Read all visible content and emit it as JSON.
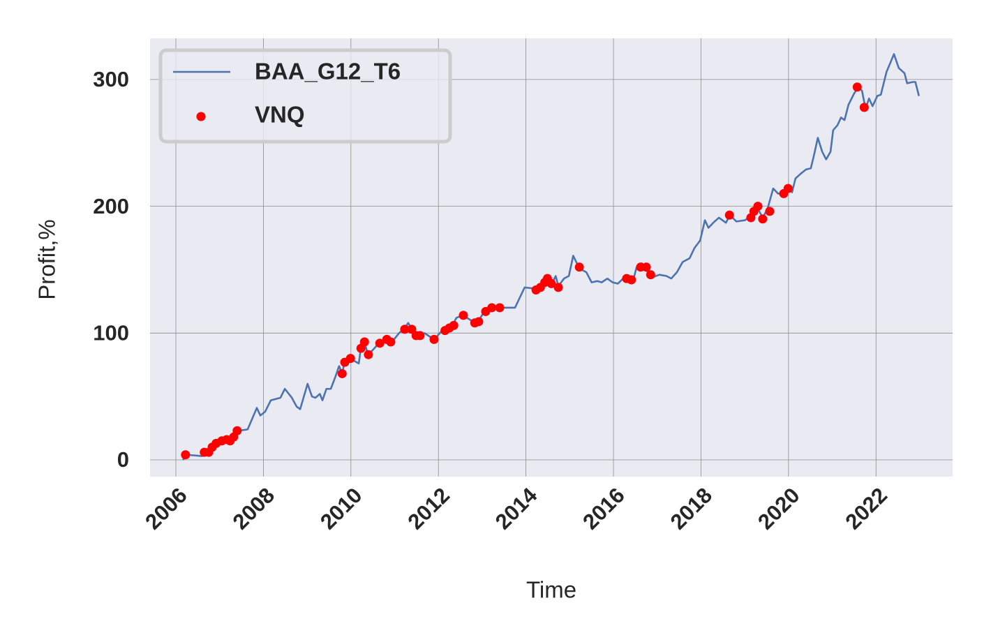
{
  "chart_data": {
    "type": "line",
    "xlabel": "Time",
    "ylabel": "Profit,%",
    "xlim": [
      2005.41,
      2023.75
    ],
    "ylim": [
      -13.2,
      332.4
    ],
    "xticks": [
      2006,
      2008,
      2010,
      2012,
      2014,
      2016,
      2018,
      2020,
      2022
    ],
    "yticks": [
      0,
      100,
      200,
      300
    ],
    "grid": true,
    "legend": "upper left",
    "series": [
      {
        "name": "BAA_G12_T6",
        "color": "#4c72b0",
        "mode": "line",
        "x": [
          2006.16,
          2006.26,
          2006.6,
          2006.77,
          2006.93,
          2007.08,
          2007.24,
          2007.44,
          2007.64,
          2007.85,
          2007.93,
          2008.04,
          2008.17,
          2008.39,
          2008.49,
          2008.65,
          2008.76,
          2008.84,
          2009.01,
          2009.11,
          2009.19,
          2009.29,
          2009.35,
          2009.44,
          2009.54,
          2009.64,
          2009.73,
          2009.8,
          2009.86,
          2009.96,
          2010.08,
          2010.18,
          2010.23,
          2010.31,
          2010.39,
          2010.51,
          2010.64,
          2010.83,
          2010.94,
          2011.1,
          2011.23,
          2011.31,
          2011.39,
          2011.52,
          2011.68,
          2011.9,
          2012.06,
          2012.19,
          2012.32,
          2012.41,
          2012.55,
          2012.7,
          2012.83,
          2012.92,
          2013.05,
          2013.14,
          2013.24,
          2013.33,
          2013.46,
          2013.75,
          2013.97,
          2014.23,
          2014.34,
          2014.45,
          2014.58,
          2014.68,
          2014.74,
          2014.87,
          2014.98,
          2015.08,
          2015.22,
          2015.38,
          2015.5,
          2015.63,
          2015.73,
          2015.86,
          2015.98,
          2016.1,
          2016.22,
          2016.33,
          2016.46,
          2016.53,
          2016.65,
          2016.76,
          2016.89,
          2017.05,
          2017.21,
          2017.32,
          2017.45,
          2017.58,
          2017.74,
          2017.85,
          2017.98,
          2018.09,
          2018.17,
          2018.28,
          2018.41,
          2018.57,
          2018.66,
          2018.81,
          2019.01,
          2019.14,
          2019.27,
          2019.41,
          2019.52,
          2019.65,
          2019.76,
          2019.89,
          2019.97,
          2020.08,
          2020.16,
          2020.29,
          2020.4,
          2020.51,
          2020.58,
          2020.67,
          2020.77,
          2020.86,
          2020.96,
          2021.02,
          2021.12,
          2021.2,
          2021.28,
          2021.37,
          2021.5,
          2021.6,
          2021.68,
          2021.76,
          2021.84,
          2021.92,
          2022.03,
          2022.11,
          2022.24,
          2022.41,
          2022.52,
          2022.65,
          2022.71,
          2022.84,
          2022.9,
          2022.98
        ],
        "values": [
          0,
          4,
          3,
          7,
          13,
          15,
          17,
          23,
          24,
          41,
          35,
          38,
          47,
          49,
          56,
          49,
          42,
          40,
          60,
          50,
          49,
          52,
          47,
          56,
          56,
          65,
          74,
          68,
          78,
          80,
          78,
          76,
          89,
          93,
          83,
          87,
          92,
          95,
          93,
          100,
          104,
          108,
          103,
          98,
          100,
          95,
          101,
          104,
          106,
          112,
          114,
          111,
          108,
          110,
          117,
          117,
          121,
          120,
          120,
          120,
          136,
          135,
          138,
          143,
          138,
          145,
          137,
          143,
          145,
          161,
          151,
          148,
          140,
          141,
          140,
          143,
          140,
          139,
          143,
          143,
          143,
          152,
          155,
          149,
          144,
          146,
          145,
          143,
          148,
          156,
          159,
          167,
          173,
          189,
          183,
          187,
          191,
          187,
          193,
          188,
          189,
          193,
          200,
          191,
          198,
          214,
          210,
          210,
          215,
          211,
          222,
          226,
          229,
          230,
          240,
          254,
          243,
          237,
          243,
          260,
          264,
          270,
          268,
          280,
          289,
          294,
          291,
          277,
          285,
          279,
          287,
          288,
          306,
          320,
          309,
          305,
          297,
          298,
          298,
          287
        ]
      },
      {
        "name": "VNQ",
        "color": "#ff0000",
        "mode": "markers",
        "x": [
          2006.22,
          2006.65,
          2006.75,
          2006.83,
          2006.92,
          2007.05,
          2007.16,
          2007.24,
          2007.32,
          2007.4,
          2009.8,
          2009.86,
          2009.99,
          2010.23,
          2010.31,
          2010.4,
          2010.66,
          2010.82,
          2010.91,
          2011.23,
          2011.39,
          2011.49,
          2011.58,
          2011.9,
          2012.15,
          2012.25,
          2012.35,
          2012.57,
          2012.83,
          2012.92,
          2013.08,
          2013.22,
          2013.4,
          2014.23,
          2014.33,
          2014.43,
          2014.49,
          2014.58,
          2014.74,
          2015.22,
          2016.3,
          2016.41,
          2016.62,
          2016.75,
          2016.85,
          2018.65,
          2019.14,
          2019.21,
          2019.3,
          2019.41,
          2019.57,
          2019.89,
          2019.99,
          2021.57,
          2021.73
        ],
        "values": [
          4,
          6,
          6,
          10,
          13,
          15,
          16,
          15,
          18,
          23,
          68,
          77,
          80,
          88,
          93,
          83,
          92,
          95,
          93,
          103,
          103,
          98,
          98,
          95,
          102,
          104,
          106,
          114,
          108,
          109,
          117,
          120,
          120,
          134,
          136,
          140,
          143,
          139,
          136,
          152,
          143,
          142,
          152,
          152,
          146,
          193,
          191,
          196,
          200,
          190,
          196,
          210,
          214,
          294,
          278
        ]
      }
    ]
  }
}
